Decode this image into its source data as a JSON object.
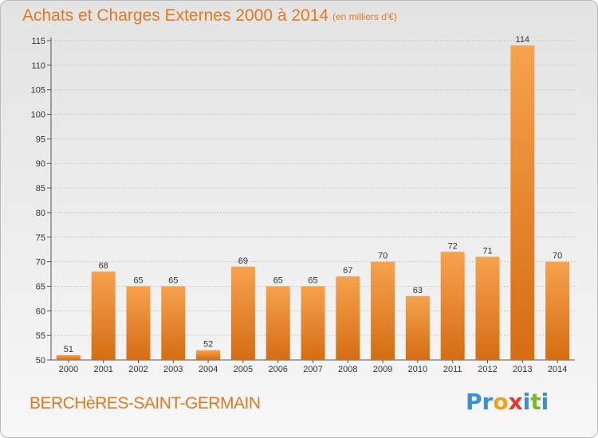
{
  "title": "Achats et Charges Externes 2000 à 2014",
  "subtitle": "(en milliers d'€)",
  "town": "BERCHèRES-SAINT-GERMAIN",
  "logo": {
    "letters": [
      {
        "ch": "P",
        "color": "#3a8fd6"
      },
      {
        "ch": "r",
        "color": "#3a8fd6"
      },
      {
        "ch": "o",
        "color": "#f0a020"
      },
      {
        "ch": "x",
        "color": "#e03a30"
      },
      {
        "ch": "i",
        "color": "#3a8fd6"
      },
      {
        "ch": "t",
        "color": "#7ab827"
      },
      {
        "ch": "i",
        "color": "#3a8fd6"
      }
    ]
  },
  "colors": {
    "accent": "#e07a20",
    "bar_top": "#f6a24f",
    "bar_bottom": "#d56d12"
  },
  "chart_data": {
    "type": "bar",
    "categories": [
      "2000",
      "2001",
      "2002",
      "2003",
      "2004",
      "2005",
      "2006",
      "2007",
      "2008",
      "2009",
      "2010",
      "2011",
      "2012",
      "2013",
      "2014"
    ],
    "values": [
      51,
      68,
      65,
      65,
      52,
      69,
      65,
      65,
      67,
      70,
      63,
      72,
      71,
      114,
      70
    ],
    "ylim": [
      50,
      115
    ],
    "yticks": [
      50,
      55,
      60,
      65,
      70,
      75,
      80,
      85,
      90,
      95,
      100,
      105,
      110,
      115
    ],
    "grid": true,
    "xlabel": "",
    "ylabel": ""
  }
}
